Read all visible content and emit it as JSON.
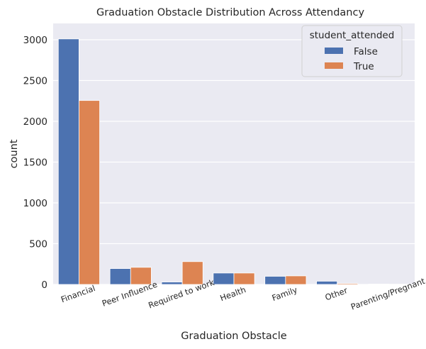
{
  "chart_data": {
    "type": "bar",
    "title": "Graduation Obstacle Distribution Across Attendancy",
    "xlabel": "Graduation Obstacle",
    "ylabel": "count",
    "ylim": [
      0,
      3200
    ],
    "yticks": [
      0,
      500,
      1000,
      1500,
      2000,
      2500,
      3000
    ],
    "grid": true,
    "legend": {
      "title": "student_attended",
      "placement": "top-right"
    },
    "categories": [
      "Financial",
      "Peer Influence",
      "Required to work",
      "Health",
      "Family",
      "Other",
      "Parenting/Pregnant"
    ],
    "series": [
      {
        "name": "False",
        "color": "#4c72b0",
        "values": [
          3010,
          195,
          30,
          140,
          100,
          40,
          4
        ]
      },
      {
        "name": "True",
        "color": "#dd8452",
        "values": [
          2255,
          210,
          280,
          140,
          105,
          12,
          3
        ]
      }
    ]
  }
}
